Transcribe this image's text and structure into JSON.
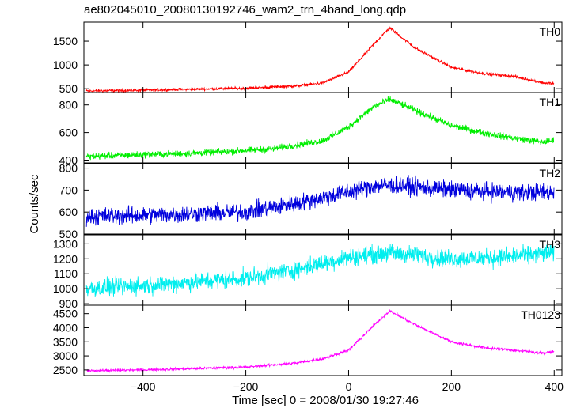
{
  "figure": {
    "title": "ae802045010_20080130192746_wam2_trn_4band_long.qdp",
    "ylabel": "Counts/sec",
    "xlabel": "Time [sec] 0 = 2008/01/30 19:27:46"
  },
  "chart_data": {
    "type": "line",
    "shared_x": {
      "label": "Time [sec] 0 = 2008/01/30 19:27:46",
      "lim": [
        -515,
        415
      ],
      "ticks": [
        -400,
        -200,
        0,
        200,
        400
      ],
      "tick_labels": [
        "−400",
        "−200",
        "0",
        "200",
        "400"
      ]
    },
    "panels": [
      {
        "name": "TH0",
        "color": "#ff0000",
        "ylim": [
          420,
          1900
        ],
        "ticks": [
          500,
          1000,
          1500
        ],
        "tick_labels": [
          "500",
          "1000",
          "1500"
        ],
        "noise": 22,
        "profile": [
          [
            -515,
            450
          ],
          [
            -400,
            470
          ],
          [
            -200,
            510
          ],
          [
            -100,
            560
          ],
          [
            -50,
            620
          ],
          [
            0,
            850
          ],
          [
            50,
            1450
          ],
          [
            80,
            1780
          ],
          [
            130,
            1350
          ],
          [
            200,
            950
          ],
          [
            260,
            820
          ],
          [
            320,
            760
          ],
          [
            380,
            620
          ],
          [
            400,
            610
          ]
        ]
      },
      {
        "name": "TH1",
        "color": "#00ee00",
        "ylim": [
          380,
          890
        ],
        "ticks": [
          400,
          600,
          800
        ],
        "tick_labels": [
          "400",
          "600",
          "800"
        ],
        "noise": 18,
        "profile": [
          [
            -515,
            425
          ],
          [
            -400,
            440
          ],
          [
            -300,
            450
          ],
          [
            -150,
            480
          ],
          [
            -50,
            540
          ],
          [
            0,
            640
          ],
          [
            50,
            790
          ],
          [
            80,
            840
          ],
          [
            130,
            760
          ],
          [
            200,
            650
          ],
          [
            260,
            600
          ],
          [
            320,
            560
          ],
          [
            380,
            530
          ],
          [
            400,
            545
          ]
        ]
      },
      {
        "name": "TH2",
        "color": "#0000dd",
        "ylim": [
          500,
          820
        ],
        "ticks": [
          500,
          600,
          700,
          800
        ],
        "tick_labels": [
          "500",
          "600",
          "700",
          "800"
        ],
        "noise": 30,
        "profile": [
          [
            -515,
            580
          ],
          [
            -400,
            585
          ],
          [
            -200,
            600
          ],
          [
            -100,
            640
          ],
          [
            -20,
            680
          ],
          [
            50,
            720
          ],
          [
            100,
            720
          ],
          [
            200,
            700
          ],
          [
            300,
            690
          ],
          [
            400,
            690
          ]
        ]
      },
      {
        "name": "TH3",
        "color": "#00eeee",
        "ylim": [
          890,
          1360
        ],
        "ticks": [
          900,
          1000,
          1100,
          1200,
          1300
        ],
        "tick_labels": [
          "900",
          "1000",
          "1100",
          "1200",
          "1300"
        ],
        "noise": 45,
        "profile": [
          [
            -515,
            1000
          ],
          [
            -400,
            1020
          ],
          [
            -200,
            1070
          ],
          [
            -100,
            1130
          ],
          [
            0,
            1210
          ],
          [
            80,
            1240
          ],
          [
            200,
            1200
          ],
          [
            300,
            1210
          ],
          [
            400,
            1240
          ]
        ]
      },
      {
        "name": "TH0123",
        "color": "#ff00ff",
        "ylim": [
          2300,
          4800
        ],
        "ticks": [
          2500,
          3000,
          3500,
          4000,
          4500
        ],
        "tick_labels": [
          "2500",
          "3000",
          "3500",
          "4000",
          "4500"
        ],
        "noise": 35,
        "profile": [
          [
            -515,
            2470
          ],
          [
            -400,
            2500
          ],
          [
            -200,
            2600
          ],
          [
            -100,
            2750
          ],
          [
            -50,
            2900
          ],
          [
            0,
            3200
          ],
          [
            50,
            4100
          ],
          [
            80,
            4600
          ],
          [
            130,
            4100
          ],
          [
            200,
            3500
          ],
          [
            260,
            3300
          ],
          [
            320,
            3200
          ],
          [
            380,
            3100
          ],
          [
            400,
            3150
          ]
        ]
      }
    ],
    "grid": false,
    "legend": "none"
  }
}
